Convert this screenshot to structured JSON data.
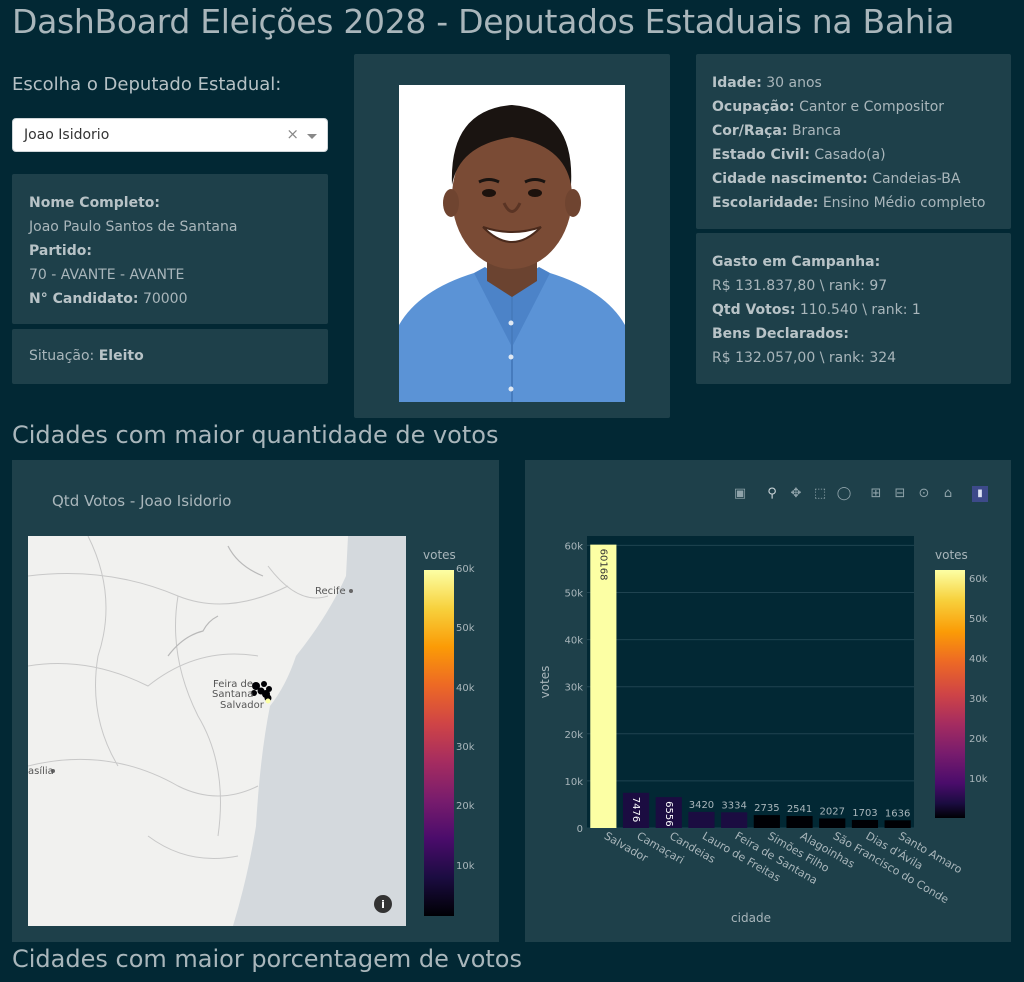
{
  "page": {
    "title": "DashBoard Eleições 2028 - Deputados Estaduais na Bahia"
  },
  "selector": {
    "label": "Escolha o Deputado Estadual:",
    "value": "Joao Isidorio",
    "clear_symbol": "×"
  },
  "candidate": {
    "nome_label": "Nome Completo:",
    "nome": "Joao Paulo Santos de Santana",
    "partido_label": "Partido:",
    "partido": "70 - AVANTE - AVANTE",
    "numero_label": "N° Candidato:",
    "numero": "70000",
    "situacao_label": "Situação:",
    "situacao": "Eleito",
    "idade_label": "Idade:",
    "idade": "30 anos",
    "ocupacao_label": "Ocupação:",
    "ocupacao": "Cantor e Compositor",
    "cor_label": "Cor/Raça:",
    "cor": "Branca",
    "estado_civil_label": "Estado Civil:",
    "estado_civil": "Casado(a)",
    "cidade_label": "Cidade nascimento:",
    "cidade": "Candeias-BA",
    "escolaridade_label": "Escolaridade:",
    "escolaridade": "Ensino Médio completo",
    "gasto_label": "Gasto em Campanha:",
    "gasto": "R$ 131.837,80 \\ rank: 97",
    "votos_label": "Qtd Votos:",
    "votos": "110.540 \\ rank: 1",
    "bens_label": "Bens Declarados:",
    "bens": "R$ 132.057,00 \\ rank: 324"
  },
  "sections": {
    "maior_quantidade": "Cidades com maior quantidade de votos",
    "maior_porcentagem": "Cidades com maior porcentagem de votos"
  },
  "map_chart": {
    "title": "Qtd Votos - Joao Isidorio",
    "colorbar_title": "votes",
    "colorbar_ticks": [
      "60k",
      "50k",
      "40k",
      "30k",
      "20k",
      "10k"
    ],
    "places": [
      "Recife",
      "Feira de",
      "Santana",
      "Salvador",
      "asília"
    ],
    "info_icon": "i"
  },
  "toolbar": {
    "icons": [
      "camera-icon",
      "zoom-icon",
      "pan-icon",
      "box-select-icon",
      "lasso-icon",
      "zoom-in-icon",
      "zoom-out-icon",
      "autoscale-icon",
      "reset-axes-icon",
      "plotly-logo-icon"
    ]
  },
  "chart_data": {
    "type": "bar",
    "categories": [
      "Salvador",
      "Camaçari",
      "Candeias",
      "Lauro de Freitas",
      "Feira de Santana",
      "Simões Filho",
      "Alagoinhas",
      "São Francisco do Conde",
      "Dias d'Ávila",
      "Santo Amaro"
    ],
    "values": [
      60168,
      7476,
      6556,
      3420,
      3334,
      2735,
      2541,
      2027,
      1703,
      1636
    ],
    "data_labels": [
      "60168",
      "7476",
      "6556",
      "3420",
      "3334",
      "2735",
      "2541",
      "2027",
      "1703",
      "1636"
    ],
    "xlabel": "cidade",
    "ylabel": "votes",
    "ylim": [
      0,
      62000
    ],
    "yticks": [
      0,
      10000,
      20000,
      30000,
      40000,
      50000,
      60000
    ],
    "ytick_labels": [
      "0",
      "10k",
      "20k",
      "30k",
      "40k",
      "50k",
      "60k"
    ],
    "colorbar_title": "votes",
    "colorbar_ticks": [
      "60k",
      "50k",
      "40k",
      "30k",
      "20k",
      "10k"
    ],
    "colorscale": [
      "#000004",
      "#1b0c41",
      "#4a0c6b",
      "#781c6d",
      "#a52c60",
      "#cf4446",
      "#ed6925",
      "#fb9b06",
      "#f7d13d",
      "#fcffa4"
    ],
    "grid": true
  }
}
